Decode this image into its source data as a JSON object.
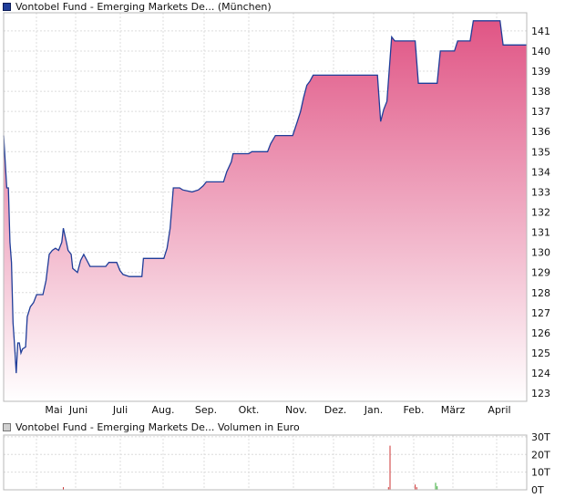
{
  "price_legend": {
    "label": "Vontobel Fund - Emerging Markets De... (München)",
    "swatch_color": "#1f3d99"
  },
  "volume_legend": {
    "label": "Vontobel Fund - Emerging Markets De... Volumen in Euro",
    "swatch_color": "#d0d0d0"
  },
  "chart_data": [
    {
      "type": "area",
      "series": [
        {
          "name": "Vontobel Fund - Emerging Markets De... (München)",
          "points": [
            [
              0,
              135.8
            ],
            [
              1,
              134.5
            ],
            [
              2,
              133.2
            ],
            [
              3,
              133.2
            ],
            [
              4,
              130.5
            ],
            [
              5,
              129.5
            ],
            [
              6,
              126.5
            ],
            [
              7,
              125.3
            ],
            [
              8,
              124.0
            ],
            [
              9,
              125.5
            ],
            [
              10,
              125.5
            ],
            [
              11,
              125.0
            ],
            [
              12,
              125.2
            ],
            [
              14,
              125.3
            ],
            [
              15,
              126.8
            ],
            [
              17,
              127.3
            ],
            [
              19,
              127.5
            ],
            [
              21,
              127.9
            ],
            [
              25,
              127.9
            ],
            [
              27,
              128.6
            ],
            [
              29,
              129.9
            ],
            [
              31,
              130.1
            ],
            [
              33,
              130.2
            ],
            [
              35,
              130.1
            ],
            [
              37,
              130.5
            ],
            [
              38,
              131.2
            ],
            [
              40,
              130.5
            ],
            [
              41,
              130.1
            ],
            [
              43,
              129.9
            ],
            [
              44,
              129.2
            ],
            [
              47,
              129.0
            ],
            [
              49,
              129.6
            ],
            [
              51,
              129.9
            ],
            [
              53,
              129.6
            ],
            [
              55,
              129.3
            ],
            [
              65,
              129.3
            ],
            [
              67,
              129.5
            ],
            [
              72,
              129.5
            ],
            [
              74,
              129.1
            ],
            [
              76,
              128.9
            ],
            [
              80,
              128.8
            ],
            [
              88,
              128.8
            ],
            [
              89,
              129.7
            ],
            [
              102,
              129.7
            ],
            [
              104,
              130.2
            ],
            [
              106,
              131.2
            ],
            [
              108,
              133.2
            ],
            [
              112,
              133.2
            ],
            [
              114,
              133.1
            ],
            [
              120,
              133.0
            ],
            [
              124,
              133.1
            ],
            [
              127,
              133.3
            ],
            [
              129,
              133.5
            ],
            [
              140,
              133.5
            ],
            [
              142,
              134.0
            ],
            [
              145,
              134.5
            ],
            [
              146,
              134.9
            ],
            [
              156,
              134.9
            ],
            [
              158,
              135.0
            ],
            [
              168,
              135.0
            ],
            [
              170,
              135.4
            ],
            [
              173,
              135.8
            ],
            [
              184,
              135.8
            ],
            [
              187,
              136.5
            ],
            [
              189,
              137.0
            ],
            [
              191,
              137.7
            ],
            [
              193,
              138.3
            ],
            [
              195,
              138.5
            ],
            [
              197,
              138.8
            ],
            [
              200,
              138.8
            ],
            [
              238,
              138.8
            ],
            [
              240,
              136.5
            ],
            [
              242,
              137.1
            ],
            [
              244,
              137.5
            ],
            [
              247,
              140.7
            ],
            [
              249,
              140.5
            ],
            [
              262,
              140.5
            ],
            [
              264,
              138.4
            ],
            [
              276,
              138.4
            ],
            [
              278,
              140.0
            ],
            [
              287,
              140.0
            ],
            [
              289,
              140.5
            ],
            [
              297,
              140.5
            ],
            [
              299,
              141.5
            ],
            [
              316,
              141.5
            ],
            [
              318,
              140.3
            ],
            [
              333,
              140.3
            ]
          ]
        }
      ],
      "x_axis": {
        "tick_labels": [
          "Mai",
          "Juni",
          "Juli",
          "Aug.",
          "Sep.",
          "Okt.",
          "Nov.",
          "Dez.",
          "Jan.",
          "Feb.",
          "März",
          "April"
        ]
      },
      "y_axis": {
        "side": "right",
        "range": [
          122.6,
          141.9
        ],
        "ticks": [
          123,
          124,
          125,
          126,
          127,
          128,
          129,
          130,
          131,
          132,
          133,
          134,
          135,
          136,
          137,
          138,
          139,
          140,
          141
        ]
      },
      "grid": true,
      "colors": {
        "line": "#1f3d99",
        "fill_top": "#e05585",
        "fill_bottom": "#ffffff"
      }
    },
    {
      "type": "bar",
      "title": "Volumen in Euro",
      "series": [
        {
          "name": "Vontobel Fund - Emerging Markets De... Volumen in Euro",
          "points": [
            [
              38,
              1.5
            ],
            [
              245,
              1.5
            ],
            [
              246,
              25
            ],
            [
              262,
              3
            ],
            [
              263,
              1.5
            ],
            [
              275,
              4
            ],
            [
              276,
              2
            ]
          ]
        }
      ],
      "x_axis": {
        "tick_labels": []
      },
      "y_axis": {
        "side": "right",
        "range": [
          0,
          31
        ],
        "ticks": [
          0,
          10,
          20,
          30
        ],
        "tick_labels": [
          "0T",
          "10T",
          "20T",
          "30T"
        ]
      },
      "grid": true,
      "colors": {
        "bar_main": "#cc3333",
        "bar_secondary": "#33aa33"
      }
    }
  ]
}
